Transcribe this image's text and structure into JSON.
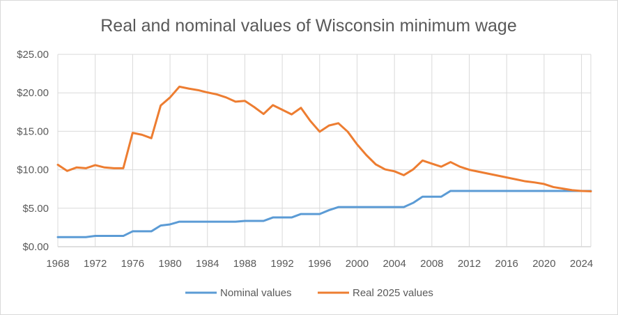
{
  "chart_data": {
    "type": "line",
    "title": "Real and nominal values of Wisconsin minimum wage",
    "xlabel": "",
    "ylabel": "",
    "xlim": [
      1968,
      2025
    ],
    "ylim": [
      0,
      25
    ],
    "y_ticks": [
      0,
      5,
      10,
      15,
      20,
      25
    ],
    "y_tick_labels": [
      "$0.00",
      "$5.00",
      "$10.00",
      "$15.00",
      "$20.00",
      "$25.00"
    ],
    "x_ticks": [
      1968,
      1972,
      1976,
      1980,
      1984,
      1988,
      1992,
      1996,
      2000,
      2004,
      2008,
      2012,
      2016,
      2020,
      2024
    ],
    "x_tick_labels": [
      "1968",
      "1972",
      "1976",
      "1980",
      "1984",
      "1988",
      "1992",
      "1996",
      "2000",
      "2004",
      "2008",
      "2012",
      "2016",
      "2020",
      "2024"
    ],
    "grid": "vertical and horizontal",
    "legend": "bottom",
    "x": [
      1968,
      1969,
      1970,
      1971,
      1972,
      1973,
      1974,
      1975,
      1976,
      1977,
      1978,
      1979,
      1980,
      1981,
      1982,
      1983,
      1984,
      1985,
      1986,
      1987,
      1988,
      1989,
      1990,
      1991,
      1992,
      1993,
      1994,
      1995,
      1996,
      1997,
      1998,
      1999,
      2000,
      2001,
      2002,
      2003,
      2004,
      2005,
      2006,
      2007,
      2008,
      2009,
      2010,
      2011,
      2012,
      2013,
      2014,
      2015,
      2016,
      2017,
      2018,
      2019,
      2020,
      2021,
      2022,
      2023,
      2024,
      2025
    ],
    "series": [
      {
        "name": "Nominal values",
        "color": "#5b9bd5",
        "values": [
          1.25,
          1.25,
          1.25,
          1.25,
          1.4,
          1.4,
          1.4,
          1.4,
          2.0,
          2.0,
          2.0,
          2.75,
          2.9,
          3.25,
          3.25,
          3.25,
          3.25,
          3.25,
          3.25,
          3.25,
          3.35,
          3.35,
          3.35,
          3.8,
          3.8,
          3.8,
          4.25,
          4.25,
          4.25,
          4.75,
          5.15,
          5.15,
          5.15,
          5.15,
          5.15,
          5.15,
          5.15,
          5.15,
          5.7,
          6.5,
          6.5,
          6.5,
          7.25,
          7.25,
          7.25,
          7.25,
          7.25,
          7.25,
          7.25,
          7.25,
          7.25,
          7.25,
          7.25,
          7.25,
          7.25,
          7.25,
          7.25,
          7.25
        ]
      },
      {
        "name": "Real 2025 values",
        "color": "#ed7d31",
        "values": [
          10.65,
          9.85,
          10.3,
          10.2,
          10.6,
          10.3,
          10.2,
          10.2,
          14.8,
          14.55,
          14.1,
          18.35,
          19.4,
          20.8,
          20.55,
          20.35,
          20.05,
          19.8,
          19.4,
          18.85,
          18.95,
          18.15,
          17.25,
          18.4,
          17.8,
          17.2,
          18.05,
          16.35,
          14.95,
          15.75,
          16.05,
          14.95,
          13.3,
          11.9,
          10.7,
          10.05,
          9.8,
          9.3,
          10.05,
          11.2,
          10.8,
          10.4,
          11.0,
          10.4,
          10.0,
          9.75,
          9.5,
          9.25,
          9.0,
          8.75,
          8.5,
          8.35,
          8.15,
          7.75,
          7.55,
          7.35,
          7.25,
          7.2
        ]
      }
    ]
  }
}
